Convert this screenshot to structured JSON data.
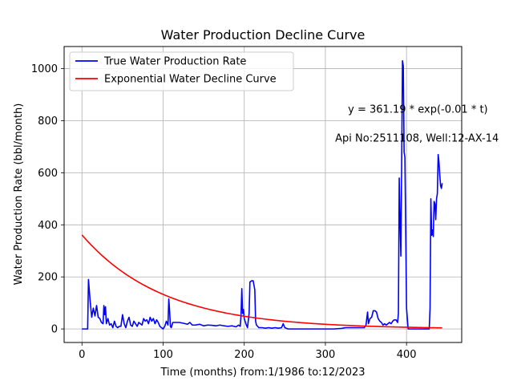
{
  "chart_data": {
    "type": "line",
    "title": "Water Production Decline Curve",
    "xlabel": "Time (months) from:1/1986 to:12/2023",
    "ylabel": "Water Production Rate (bbl/month)",
    "xlim": [
      -22,
      468
    ],
    "ylim": [
      -52,
      1085
    ],
    "xticks": [
      0,
      100,
      200,
      300,
      400
    ],
    "yticks": [
      0,
      200,
      400,
      600,
      800,
      1000
    ],
    "grid": true,
    "legend_position": "upper-left",
    "annotations": [
      {
        "text": "y = 361.19 * exp(-0.01 * t)",
        "x": 318,
        "y": 843
      },
      {
        "text": "Api No:2511108, Well:12-AX-14",
        "x": 318,
        "y": 732
      }
    ],
    "series": [
      {
        "name": "True Water Production Rate",
        "color": "#0000ff",
        "points": [
          [
            0,
            0
          ],
          [
            7,
            0
          ],
          [
            8,
            190
          ],
          [
            10,
            110
          ],
          [
            12,
            45
          ],
          [
            14,
            80
          ],
          [
            16,
            50
          ],
          [
            18,
            90
          ],
          [
            20,
            45
          ],
          [
            22,
            40
          ],
          [
            24,
            25
          ],
          [
            26,
            20
          ],
          [
            27,
            90
          ],
          [
            28,
            55
          ],
          [
            29,
            85
          ],
          [
            30,
            20
          ],
          [
            32,
            40
          ],
          [
            34,
            15
          ],
          [
            36,
            20
          ],
          [
            38,
            5
          ],
          [
            40,
            30
          ],
          [
            42,
            10
          ],
          [
            44,
            5
          ],
          [
            46,
            10
          ],
          [
            48,
            10
          ],
          [
            50,
            55
          ],
          [
            52,
            20
          ],
          [
            54,
            5
          ],
          [
            56,
            30
          ],
          [
            58,
            45
          ],
          [
            60,
            15
          ],
          [
            62,
            10
          ],
          [
            64,
            30
          ],
          [
            66,
            20
          ],
          [
            68,
            10
          ],
          [
            70,
            25
          ],
          [
            72,
            20
          ],
          [
            74,
            15
          ],
          [
            76,
            40
          ],
          [
            78,
            30
          ],
          [
            80,
            35
          ],
          [
            82,
            20
          ],
          [
            84,
            45
          ],
          [
            86,
            30
          ],
          [
            88,
            40
          ],
          [
            90,
            20
          ],
          [
            92,
            35
          ],
          [
            94,
            25
          ],
          [
            96,
            10
          ],
          [
            98,
            5
          ],
          [
            100,
            0
          ],
          [
            102,
            10
          ],
          [
            104,
            30
          ],
          [
            106,
            15
          ],
          [
            107,
            115
          ],
          [
            108,
            70
          ],
          [
            109,
            10
          ],
          [
            110,
            5
          ],
          [
            112,
            25
          ],
          [
            115,
            25
          ],
          [
            120,
            25
          ],
          [
            125,
            22
          ],
          [
            130,
            18
          ],
          [
            133,
            25
          ],
          [
            136,
            15
          ],
          [
            140,
            15
          ],
          [
            145,
            18
          ],
          [
            150,
            12
          ],
          [
            155,
            15
          ],
          [
            160,
            14
          ],
          [
            165,
            12
          ],
          [
            170,
            15
          ],
          [
            175,
            12
          ],
          [
            180,
            10
          ],
          [
            185,
            12
          ],
          [
            190,
            8
          ],
          [
            193,
            15
          ],
          [
            195,
            10
          ],
          [
            196,
            50
          ],
          [
            197,
            155
          ],
          [
            198,
            60
          ],
          [
            199,
            75
          ],
          [
            200,
            40
          ],
          [
            202,
            20
          ],
          [
            204,
            5
          ],
          [
            206,
            60
          ],
          [
            207,
            180
          ],
          [
            209,
            185
          ],
          [
            211,
            185
          ],
          [
            213,
            150
          ],
          [
            214,
            30
          ],
          [
            215,
            15
          ],
          [
            218,
            5
          ],
          [
            222,
            5
          ],
          [
            226,
            3
          ],
          [
            230,
            5
          ],
          [
            234,
            3
          ],
          [
            238,
            5
          ],
          [
            242,
            3
          ],
          [
            246,
            5
          ],
          [
            248,
            20
          ],
          [
            250,
            5
          ],
          [
            254,
            0
          ],
          [
            260,
            0
          ],
          [
            270,
            0
          ],
          [
            280,
            0
          ],
          [
            290,
            0
          ],
          [
            300,
            0
          ],
          [
            310,
            0
          ],
          [
            320,
            2
          ],
          [
            325,
            5
          ],
          [
            330,
            5
          ],
          [
            335,
            5
          ],
          [
            340,
            5
          ],
          [
            345,
            5
          ],
          [
            348,
            5
          ],
          [
            350,
            15
          ],
          [
            352,
            65
          ],
          [
            353,
            20
          ],
          [
            355,
            40
          ],
          [
            357,
            45
          ],
          [
            359,
            70
          ],
          [
            361,
            70
          ],
          [
            363,
            65
          ],
          [
            365,
            40
          ],
          [
            367,
            30
          ],
          [
            369,
            25
          ],
          [
            371,
            15
          ],
          [
            373,
            20
          ],
          [
            375,
            15
          ],
          [
            377,
            20
          ],
          [
            379,
            25
          ],
          [
            381,
            20
          ],
          [
            383,
            30
          ],
          [
            385,
            35
          ],
          [
            387,
            35
          ],
          [
            389,
            25
          ],
          [
            390,
            60
          ],
          [
            391,
            580
          ],
          [
            392,
            420
          ],
          [
            393,
            280
          ],
          [
            394,
            620
          ],
          [
            395,
            1030
          ],
          [
            396,
            1010
          ],
          [
            397,
            680
          ],
          [
            398,
            660
          ],
          [
            399,
            380
          ],
          [
            400,
            80
          ],
          [
            402,
            0
          ],
          [
            405,
            0
          ],
          [
            415,
            0
          ],
          [
            425,
            0
          ],
          [
            428,
            0
          ],
          [
            429,
            80
          ],
          [
            430,
            500
          ],
          [
            431,
            360
          ],
          [
            432,
            380
          ],
          [
            433,
            355
          ],
          [
            434,
            490
          ],
          [
            435,
            480
          ],
          [
            436,
            420
          ],
          [
            437,
            500
          ],
          [
            438,
            520
          ],
          [
            439,
            670
          ],
          [
            440,
            640
          ],
          [
            441,
            590
          ],
          [
            442,
            550
          ],
          [
            443,
            540
          ],
          [
            444,
            560
          ]
        ]
      },
      {
        "name": "Exponential Water Decline Curve",
        "color": "#ff0000",
        "a": 361.19,
        "b": 0.01,
        "x_range": [
          0,
          444
        ]
      }
    ]
  }
}
